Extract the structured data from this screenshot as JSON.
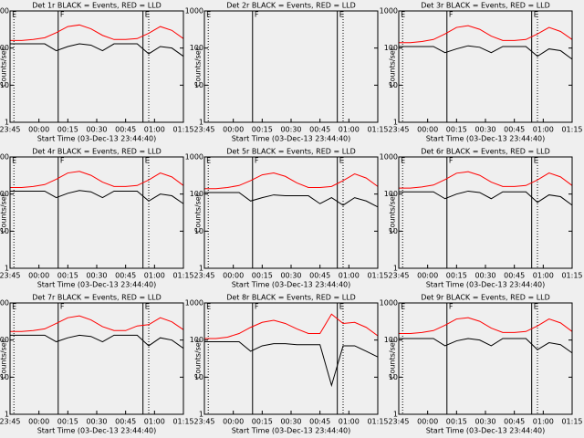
{
  "chart_data": [
    {
      "type": "line",
      "title": "Det 1r BLACK = Events, RED = LLD",
      "xlabel": "Start Time (03-Dec-13 23:44:40)",
      "ylabel": "Counts/sec",
      "yscale": "log",
      "ylim": [
        1,
        1000
      ],
      "yticks": [
        1,
        10,
        100,
        1000
      ],
      "xlim": [
        "23:45",
        "01:15"
      ],
      "xticks": [
        "23:45",
        "00:00",
        "00:15",
        "00:30",
        "00:45",
        "01:00",
        "01:15"
      ],
      "vlines": [
        {
          "x": "23:47",
          "style": "dotted"
        },
        {
          "x": "00:10",
          "style": "solid"
        },
        {
          "x": "00:54",
          "style": "solid"
        },
        {
          "x": "00:57",
          "style": "dotted"
        }
      ],
      "annotations": [
        {
          "text": "E",
          "x": "23:46"
        },
        {
          "text": "F",
          "x": "00:11"
        },
        {
          "text": "E",
          "x": "00:55"
        }
      ],
      "x": [
        "23:45",
        "23:51",
        "23:57",
        "00:03",
        "00:09",
        "00:15",
        "00:21",
        "00:27",
        "00:33",
        "00:39",
        "00:45",
        "00:51",
        "00:57",
        "01:03",
        "01:09",
        "01:15"
      ],
      "series": [
        {
          "name": "LLD",
          "color": "#ff0000",
          "values": [
            160,
            160,
            170,
            190,
            260,
            380,
            420,
            330,
            220,
            170,
            170,
            180,
            250,
            380,
            300,
            180
          ]
        },
        {
          "name": "Events",
          "color": "#000000",
          "values": [
            130,
            130,
            130,
            130,
            85,
            110,
            130,
            120,
            85,
            130,
            130,
            130,
            70,
            110,
            100,
            60
          ]
        }
      ]
    },
    {
      "type": "line",
      "title": "Det 2r BLACK = Events, RED = LLD",
      "xlabel": "Start Time (03-Dec-13 23:44:40)",
      "ylabel": "Counts/sec",
      "yscale": "log",
      "ylim": [
        1,
        1000
      ],
      "yticks": [
        1,
        10,
        100,
        1000
      ],
      "xlim": [
        "23:45",
        "01:15"
      ],
      "xticks": [
        "23:45",
        "00:00",
        "00:15",
        "00:30",
        "00:45",
        "01:00",
        "01:15"
      ],
      "vlines": [
        {
          "x": "23:47",
          "style": "dotted"
        },
        {
          "x": "00:10",
          "style": "solid"
        },
        {
          "x": "00:54",
          "style": "solid"
        },
        {
          "x": "00:57",
          "style": "dotted"
        }
      ],
      "annotations": [
        {
          "text": "E",
          "x": "23:46"
        },
        {
          "text": "F",
          "x": "00:11"
        },
        {
          "text": "E",
          "x": "00:55"
        }
      ]
    },
    {
      "type": "line",
      "title": "Det 3r BLACK = Events, RED = LLD",
      "xlabel": "Start Time (03-Dec-13 23:44:40)",
      "ylabel": "Counts/sec",
      "yscale": "log",
      "ylim": [
        1,
        1000
      ],
      "yticks": [
        1,
        10,
        100,
        1000
      ],
      "xlim": [
        "23:45",
        "01:15"
      ],
      "xticks": [
        "23:45",
        "00:00",
        "00:15",
        "00:30",
        "00:45",
        "01:00",
        "01:15"
      ],
      "vlines": [
        {
          "x": "23:47",
          "style": "dotted"
        },
        {
          "x": "00:10",
          "style": "solid"
        },
        {
          "x": "00:54",
          "style": "solid"
        },
        {
          "x": "00:57",
          "style": "dotted"
        }
      ],
      "annotations": [
        {
          "text": "E",
          "x": "23:46"
        },
        {
          "text": "F",
          "x": "00:11"
        },
        {
          "text": "E",
          "x": "00:55"
        }
      ],
      "x": [
        "23:45",
        "23:51",
        "23:57",
        "00:03",
        "00:09",
        "00:15",
        "00:21",
        "00:27",
        "00:33",
        "00:39",
        "00:45",
        "00:51",
        "00:57",
        "01:03",
        "01:09",
        "01:15"
      ],
      "series": [
        {
          "name": "LLD",
          "color": "#ff0000",
          "values": [
            140,
            140,
            150,
            170,
            240,
            360,
            400,
            320,
            210,
            160,
            160,
            170,
            240,
            360,
            280,
            170
          ]
        },
        {
          "name": "Events",
          "color": "#000000",
          "values": [
            110,
            110,
            110,
            110,
            75,
            95,
            115,
            105,
            75,
            110,
            110,
            110,
            60,
            95,
            85,
            50
          ]
        }
      ]
    },
    {
      "type": "line",
      "title": "Det 4r BLACK = Events, RED = LLD",
      "xlabel": "Start Time (03-Dec-13 23:44:40)",
      "ylabel": "Counts/sec",
      "yscale": "log",
      "ylim": [
        1,
        1000
      ],
      "yticks": [
        1,
        10,
        100,
        1000
      ],
      "xlim": [
        "23:45",
        "01:15"
      ],
      "xticks": [
        "23:45",
        "00:00",
        "00:15",
        "00:30",
        "00:45",
        "01:00",
        "01:15"
      ],
      "vlines": [
        {
          "x": "23:47",
          "style": "dotted"
        },
        {
          "x": "00:10",
          "style": "solid"
        },
        {
          "x": "00:54",
          "style": "solid"
        },
        {
          "x": "00:57",
          "style": "dotted"
        }
      ],
      "annotations": [
        {
          "text": "E",
          "x": "23:46"
        },
        {
          "text": "F",
          "x": "00:11"
        },
        {
          "text": "E",
          "x": "00:55"
        }
      ],
      "x": [
        "23:45",
        "23:51",
        "23:57",
        "00:03",
        "00:09",
        "00:15",
        "00:21",
        "00:27",
        "00:33",
        "00:39",
        "00:45",
        "00:51",
        "00:57",
        "01:03",
        "01:09",
        "01:15"
      ],
      "series": [
        {
          "name": "LLD",
          "color": "#ff0000",
          "values": [
            150,
            150,
            160,
            180,
            250,
            370,
            410,
            320,
            210,
            160,
            160,
            170,
            240,
            370,
            290,
            170
          ]
        },
        {
          "name": "Events",
          "color": "#000000",
          "values": [
            120,
            120,
            120,
            120,
            80,
            105,
            125,
            115,
            80,
            120,
            120,
            120,
            65,
            100,
            90,
            55
          ]
        }
      ]
    },
    {
      "type": "line",
      "title": "Det 5r BLACK = Events, RED = LLD",
      "xlabel": "Start Time (03-Dec-13 23:44:40)",
      "ylabel": "Counts/sec",
      "yscale": "log",
      "ylim": [
        1,
        1000
      ],
      "yticks": [
        1,
        10,
        100,
        1000
      ],
      "xlim": [
        "23:45",
        "01:15"
      ],
      "xticks": [
        "23:45",
        "00:00",
        "00:15",
        "00:30",
        "00:45",
        "01:00",
        "01:15"
      ],
      "vlines": [
        {
          "x": "23:47",
          "style": "dotted"
        },
        {
          "x": "00:10",
          "style": "solid"
        },
        {
          "x": "00:54",
          "style": "solid"
        },
        {
          "x": "00:57",
          "style": "dotted"
        }
      ],
      "annotations": [
        {
          "text": "E",
          "x": "23:46"
        },
        {
          "text": "F",
          "x": "00:11"
        },
        {
          "text": "E",
          "x": "00:55"
        }
      ],
      "x": [
        "23:45",
        "23:51",
        "23:57",
        "00:03",
        "00:09",
        "00:15",
        "00:21",
        "00:27",
        "00:33",
        "00:39",
        "00:45",
        "00:51",
        "00:57",
        "01:03",
        "01:09",
        "01:15"
      ],
      "series": [
        {
          "name": "LLD",
          "color": "#ff0000",
          "values": [
            140,
            140,
            150,
            170,
            230,
            330,
            370,
            300,
            200,
            150,
            150,
            160,
            230,
            350,
            270,
            160
          ]
        },
        {
          "name": "Events",
          "color": "#000000",
          "values": [
            110,
            110,
            110,
            110,
            65,
            80,
            95,
            90,
            90,
            90,
            55,
            80,
            50,
            80,
            65,
            45
          ]
        }
      ]
    },
    {
      "type": "line",
      "title": "Det 6r BLACK = Events, RED = LLD",
      "xlabel": "Start Time (03-Dec-13 23:44:40)",
      "ylabel": "Counts/sec",
      "yscale": "log",
      "ylim": [
        1,
        1000
      ],
      "yticks": [
        1,
        10,
        100,
        1000
      ],
      "xlim": [
        "23:45",
        "01:15"
      ],
      "xticks": [
        "23:45",
        "00:00",
        "00:15",
        "00:30",
        "00:45",
        "01:00",
        "01:15"
      ],
      "vlines": [
        {
          "x": "23:47",
          "style": "dotted"
        },
        {
          "x": "00:10",
          "style": "solid"
        },
        {
          "x": "00:54",
          "style": "solid"
        },
        {
          "x": "00:57",
          "style": "dotted"
        }
      ],
      "annotations": [
        {
          "text": "E",
          "x": "23:46"
        },
        {
          "text": "F",
          "x": "00:11"
        },
        {
          "text": "E",
          "x": "00:55"
        }
      ],
      "x": [
        "23:45",
        "23:51",
        "23:57",
        "00:03",
        "00:09",
        "00:15",
        "00:21",
        "00:27",
        "00:33",
        "00:39",
        "00:45",
        "00:51",
        "00:57",
        "01:03",
        "01:09",
        "01:15"
      ],
      "series": [
        {
          "name": "LLD",
          "color": "#ff0000",
          "values": [
            145,
            145,
            155,
            175,
            245,
            365,
            400,
            320,
            210,
            160,
            160,
            170,
            240,
            370,
            290,
            170
          ]
        },
        {
          "name": "Events",
          "color": "#000000",
          "values": [
            115,
            115,
            115,
            115,
            75,
            100,
            120,
            110,
            75,
            115,
            115,
            115,
            60,
            95,
            85,
            50
          ]
        }
      ]
    },
    {
      "type": "line",
      "title": "Det 7r BLACK = Events, RED = LLD",
      "xlabel": "Start Time (03-Dec-13 23:44:40)",
      "ylabel": "Counts/sec",
      "yscale": "log",
      "ylim": [
        1,
        1000
      ],
      "yticks": [
        1,
        10,
        100,
        1000
      ],
      "xlim": [
        "23:45",
        "01:15"
      ],
      "xticks": [
        "23:45",
        "00:00",
        "00:15",
        "00:30",
        "00:45",
        "01:00",
        "01:15"
      ],
      "vlines": [
        {
          "x": "23:47",
          "style": "dotted"
        },
        {
          "x": "00:10",
          "style": "solid"
        },
        {
          "x": "00:54",
          "style": "solid"
        },
        {
          "x": "00:57",
          "style": "dotted"
        }
      ],
      "annotations": [
        {
          "text": "E",
          "x": "23:46"
        },
        {
          "text": "F",
          "x": "00:11"
        },
        {
          "text": "E",
          "x": "00:55"
        }
      ],
      "x": [
        "23:45",
        "23:51",
        "23:57",
        "00:03",
        "00:09",
        "00:15",
        "00:21",
        "00:27",
        "00:33",
        "00:39",
        "00:45",
        "00:51",
        "00:57",
        "01:03",
        "01:09",
        "01:15"
      ],
      "series": [
        {
          "name": "LLD",
          "color": "#ff0000",
          "values": [
            170,
            170,
            180,
            200,
            280,
            400,
            450,
            350,
            230,
            180,
            180,
            240,
            260,
            400,
            310,
            190
          ]
        },
        {
          "name": "Events",
          "color": "#000000",
          "values": [
            135,
            135,
            135,
            135,
            90,
            115,
            135,
            125,
            90,
            135,
            135,
            135,
            70,
            115,
            100,
            60
          ]
        }
      ]
    },
    {
      "type": "line",
      "title": "Det 8r BLACK = Events, RED = LLD",
      "xlabel": "Start Time (03-Dec-13 23:44:40)",
      "ylabel": "Counts/sec",
      "yscale": "log",
      "ylim": [
        1,
        1000
      ],
      "yticks": [
        1,
        10,
        100,
        1000
      ],
      "xlim": [
        "23:45",
        "01:15"
      ],
      "xticks": [
        "23:45",
        "00:00",
        "00:15",
        "00:30",
        "00:45",
        "01:00",
        "01:15"
      ],
      "vlines": [
        {
          "x": "23:47",
          "style": "dotted"
        },
        {
          "x": "00:10",
          "style": "solid"
        },
        {
          "x": "00:54",
          "style": "solid"
        },
        {
          "x": "00:57",
          "style": "dotted"
        }
      ],
      "annotations": [
        {
          "text": "E",
          "x": "23:46"
        },
        {
          "text": "F",
          "x": "00:11"
        },
        {
          "text": "E",
          "x": "00:55"
        }
      ],
      "x": [
        "23:45",
        "23:51",
        "23:57",
        "00:03",
        "00:09",
        "00:15",
        "00:21",
        "00:27",
        "00:33",
        "00:39",
        "00:45",
        "00:51",
        "00:57",
        "01:03",
        "01:09",
        "01:15"
      ],
      "series": [
        {
          "name": "LLD",
          "color": "#ff0000",
          "values": [
            110,
            110,
            120,
            150,
            220,
            300,
            340,
            280,
            200,
            150,
            150,
            500,
            280,
            300,
            220,
            130
          ]
        },
        {
          "name": "Events",
          "color": "#000000",
          "values": [
            90,
            90,
            90,
            90,
            50,
            70,
            80,
            80,
            75,
            75,
            75,
            6,
            70,
            70,
            50,
            35
          ]
        }
      ]
    },
    {
      "type": "line",
      "title": "Det 9r BLACK = Events, RED = LLD",
      "xlabel": "Start Time (03-Dec-13 23:44:40)",
      "ylabel": "Counts/sec",
      "yscale": "log",
      "ylim": [
        1,
        1000
      ],
      "yticks": [
        1,
        10,
        100,
        1000
      ],
      "xlim": [
        "23:45",
        "01:15"
      ],
      "xticks": [
        "23:45",
        "00:00",
        "00:15",
        "00:30",
        "00:45",
        "01:00",
        "01:15"
      ],
      "vlines": [
        {
          "x": "23:47",
          "style": "dotted"
        },
        {
          "x": "00:10",
          "style": "solid"
        },
        {
          "x": "00:54",
          "style": "solid"
        },
        {
          "x": "00:57",
          "style": "dotted"
        }
      ],
      "annotations": [
        {
          "text": "E",
          "x": "23:46"
        },
        {
          "text": "F",
          "x": "00:11"
        },
        {
          "text": "E",
          "x": "00:55"
        }
      ],
      "x": [
        "23:45",
        "23:51",
        "23:57",
        "00:03",
        "00:09",
        "00:15",
        "00:21",
        "00:27",
        "00:33",
        "00:39",
        "00:45",
        "00:51",
        "00:57",
        "01:03",
        "01:09",
        "01:15"
      ],
      "series": [
        {
          "name": "LLD",
          "color": "#ff0000",
          "values": [
            150,
            150,
            160,
            180,
            250,
            370,
            400,
            320,
            210,
            160,
            160,
            170,
            240,
            370,
            290,
            170
          ]
        },
        {
          "name": "Events",
          "color": "#000000",
          "values": [
            110,
            110,
            110,
            110,
            70,
            95,
            110,
            100,
            70,
            110,
            110,
            110,
            55,
            85,
            75,
            45
          ]
        }
      ]
    }
  ]
}
